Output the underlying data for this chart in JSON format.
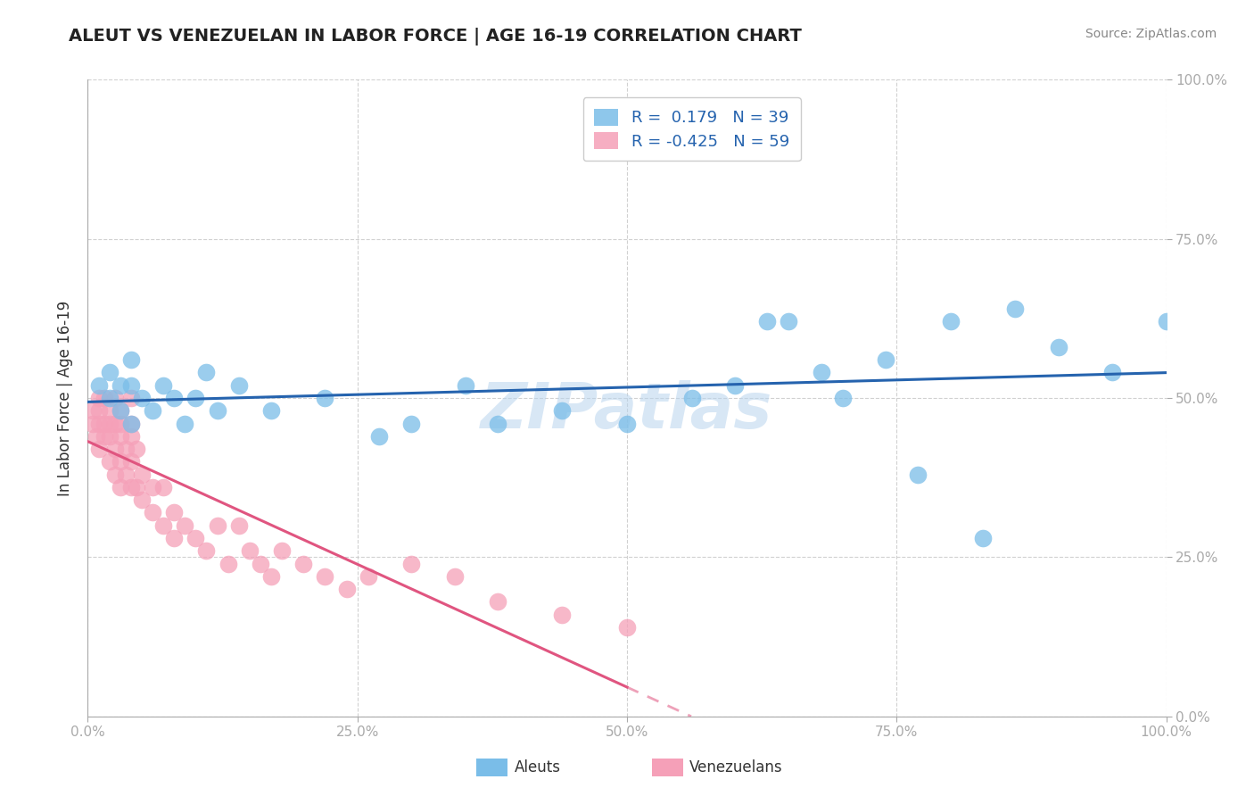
{
  "title": "ALEUT VS VENEZUELAN IN LABOR FORCE | AGE 16-19 CORRELATION CHART",
  "source": "Source: ZipAtlas.com",
  "ylabel": "In Labor Force | Age 16-19",
  "xlim": [
    0.0,
    1.0
  ],
  "ylim": [
    0.0,
    1.0
  ],
  "xticks": [
    0.0,
    0.25,
    0.5,
    0.75,
    1.0
  ],
  "yticks": [
    0.0,
    0.25,
    0.5,
    0.75,
    1.0
  ],
  "xticklabels": [
    "0.0%",
    "25.0%",
    "50.0%",
    "75.0%",
    "100.0%"
  ],
  "yticklabels": [
    "0.0%",
    "25.0%",
    "50.0%",
    "75.0%",
    "100.0%"
  ],
  "aleuts_color": "#7abde8",
  "venezuelans_color": "#f5a0b8",
  "aleuts_line_color": "#2563ae",
  "venezuelans_line_color": "#e05580",
  "aleuts_R": 0.179,
  "aleuts_N": 39,
  "venezuelans_R": -0.425,
  "venezuelans_N": 59,
  "grid_color": "#cccccc",
  "background_color": "#ffffff",
  "watermark": "ZIPatlas",
  "aleuts_x": [
    0.01,
    0.02,
    0.02,
    0.03,
    0.03,
    0.04,
    0.04,
    0.04,
    0.05,
    0.06,
    0.07,
    0.08,
    0.09,
    0.1,
    0.11,
    0.12,
    0.14,
    0.17,
    0.22,
    0.27,
    0.3,
    0.35,
    0.38,
    0.44,
    0.5,
    0.56,
    0.6,
    0.63,
    0.65,
    0.68,
    0.7,
    0.74,
    0.77,
    0.8,
    0.83,
    0.86,
    0.9,
    0.95,
    1.0
  ],
  "aleuts_y": [
    0.52,
    0.54,
    0.5,
    0.48,
    0.52,
    0.46,
    0.52,
    0.56,
    0.5,
    0.48,
    0.52,
    0.5,
    0.46,
    0.5,
    0.54,
    0.48,
    0.52,
    0.48,
    0.5,
    0.44,
    0.46,
    0.52,
    0.46,
    0.48,
    0.46,
    0.5,
    0.52,
    0.62,
    0.62,
    0.54,
    0.5,
    0.56,
    0.38,
    0.62,
    0.28,
    0.64,
    0.58,
    0.54,
    0.62
  ],
  "venezuelans_x": [
    0.005,
    0.005,
    0.008,
    0.01,
    0.01,
    0.01,
    0.01,
    0.015,
    0.015,
    0.015,
    0.02,
    0.02,
    0.02,
    0.02,
    0.025,
    0.025,
    0.025,
    0.025,
    0.03,
    0.03,
    0.03,
    0.03,
    0.03,
    0.035,
    0.035,
    0.04,
    0.04,
    0.04,
    0.04,
    0.04,
    0.045,
    0.045,
    0.05,
    0.05,
    0.06,
    0.06,
    0.07,
    0.07,
    0.08,
    0.08,
    0.09,
    0.1,
    0.11,
    0.12,
    0.13,
    0.14,
    0.15,
    0.16,
    0.17,
    0.18,
    0.2,
    0.22,
    0.24,
    0.26,
    0.3,
    0.34,
    0.38,
    0.44,
    0.5
  ],
  "venezuelans_y": [
    0.46,
    0.48,
    0.44,
    0.42,
    0.46,
    0.48,
    0.5,
    0.44,
    0.46,
    0.5,
    0.4,
    0.44,
    0.46,
    0.48,
    0.38,
    0.42,
    0.46,
    0.5,
    0.36,
    0.4,
    0.44,
    0.46,
    0.48,
    0.38,
    0.42,
    0.36,
    0.4,
    0.44,
    0.46,
    0.5,
    0.36,
    0.42,
    0.34,
    0.38,
    0.32,
    0.36,
    0.3,
    0.36,
    0.28,
    0.32,
    0.3,
    0.28,
    0.26,
    0.3,
    0.24,
    0.3,
    0.26,
    0.24,
    0.22,
    0.26,
    0.24,
    0.22,
    0.2,
    0.22,
    0.24,
    0.22,
    0.18,
    0.16,
    0.14
  ]
}
